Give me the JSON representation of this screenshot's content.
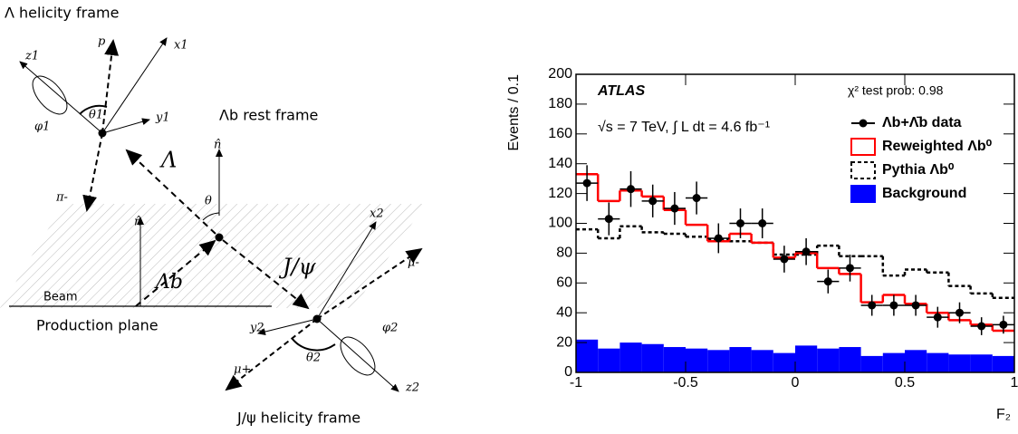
{
  "diagram": {
    "labels": [
      "Λ helicity frame",
      "Λb rest frame",
      "J/ψ helicity frame",
      "Production plane",
      "Beam",
      "p",
      "x1",
      "y1",
      "z1",
      "θ1",
      "φ1",
      "π-",
      "Λ",
      "n̂",
      "θ",
      "n̂",
      "Λb",
      "J/ψ",
      "x2",
      "y2",
      "z2",
      "θ2",
      "φ2",
      "μ-",
      "μ+"
    ]
  },
  "chart_data": {
    "type": "histogram",
    "title": "ATLAS",
    "subtitle": "√s = 7 TeV, ∫ L dt = 4.6 fb⁻¹",
    "annotation": "χ² test prob: 0.98",
    "xlabel": "F₂",
    "ylabel": "Events / 0.1",
    "bins": [
      -1,
      -0.9,
      -0.8,
      -0.7,
      -0.6,
      -0.5,
      -0.4,
      -0.3,
      -0.2,
      -0.1,
      0,
      0.1,
      0.2,
      0.3,
      0.4,
      0.5,
      0.6,
      0.7,
      0.8,
      0.9,
      1
    ],
    "series": [
      {
        "name": "Background",
        "color": "#0000ff",
        "style": "filled",
        "values": [
          22,
          16,
          20,
          19,
          17,
          16,
          15,
          17,
          15,
          13,
          18,
          16,
          17,
          11,
          13,
          15,
          13,
          12,
          12,
          11
        ]
      },
      {
        "name": "Pythia Λb⁰",
        "color": "#000000",
        "style": "dashed",
        "values": [
          96,
          90,
          98,
          94,
          93,
          91,
          89,
          88,
          87,
          79,
          79,
          85,
          78,
          78,
          65,
          69,
          67,
          58,
          53,
          50
        ]
      },
      {
        "name": "Reweighted Λb⁰",
        "color": "#ff0000",
        "style": "step",
        "values": [
          133,
          115,
          122,
          118,
          109,
          99,
          88,
          93,
          87,
          77,
          80,
          70,
          66,
          47,
          52,
          46,
          40,
          35,
          32,
          28
        ]
      },
      {
        "name": "Λb+Λ̄b data",
        "color": "#000000",
        "style": "points",
        "values": [
          127,
          103,
          123,
          115,
          110,
          117,
          90,
          100,
          100,
          76,
          81,
          61,
          70,
          45,
          45,
          45,
          37,
          40,
          31,
          32
        ],
        "errors": [
          12,
          11,
          12,
          11,
          11,
          11,
          10,
          10,
          10,
          9,
          9,
          8,
          9,
          7,
          7,
          7,
          7,
          7,
          6,
          6
        ]
      }
    ],
    "xlim": [
      -1,
      1
    ],
    "xticks": [
      -1,
      -0.5,
      0,
      0.5,
      1
    ],
    "ylim": [
      0,
      200
    ],
    "yticks": [
      0,
      20,
      40,
      60,
      80,
      100,
      120,
      140,
      160,
      180,
      200
    ],
    "legend": "upper right"
  }
}
